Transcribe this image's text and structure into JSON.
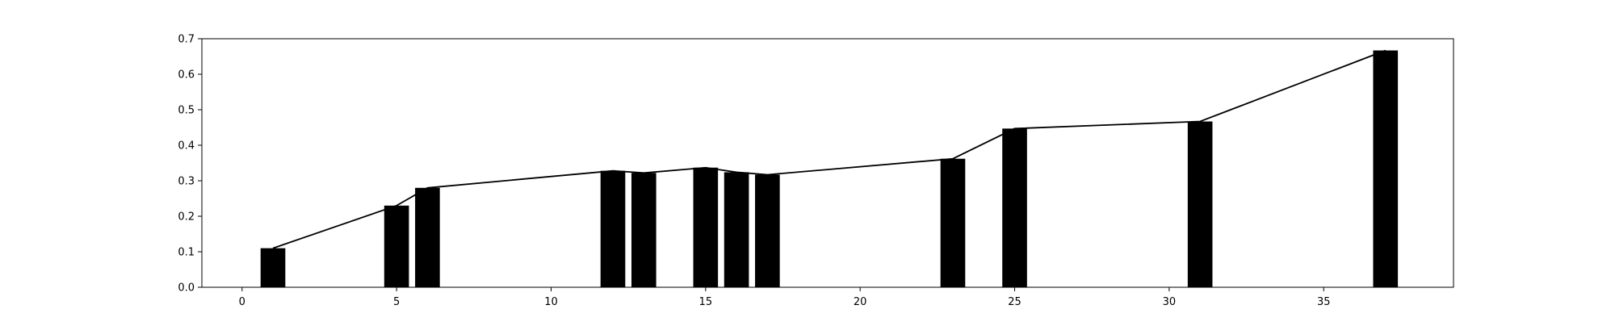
{
  "chart_data": {
    "type": "bar",
    "title": "",
    "xlabel": "",
    "ylabel": "",
    "xlim": [
      -1.3,
      39.2
    ],
    "ylim": [
      0,
      0.7
    ],
    "grid": false,
    "x_ticks": [
      0,
      5,
      10,
      15,
      20,
      25,
      30,
      35
    ],
    "y_ticks": [
      0.0,
      0.1,
      0.2,
      0.3,
      0.4,
      0.5,
      0.6,
      0.7
    ],
    "x_tick_labels": [
      "0",
      "5",
      "10",
      "15",
      "20",
      "25",
      "30",
      "35"
    ],
    "y_tick_labels": [
      "0.0",
      "0.1",
      "0.2",
      "0.3",
      "0.4",
      "0.5",
      "0.6",
      "0.7"
    ],
    "bar_width": 0.8,
    "x": [
      1,
      5,
      6,
      12,
      13,
      15,
      16,
      17,
      23,
      25,
      31,
      37
    ],
    "values": [
      0.11,
      0.23,
      0.28,
      0.328,
      0.322,
      0.337,
      0.324,
      0.317,
      0.362,
      0.447,
      0.467,
      0.667
    ],
    "line": {
      "x": [
        1,
        5,
        6,
        12,
        13,
        15,
        16,
        17,
        23,
        25,
        31,
        37
      ],
      "values": [
        0.11,
        0.23,
        0.28,
        0.328,
        0.322,
        0.337,
        0.324,
        0.317,
        0.362,
        0.447,
        0.467,
        0.667
      ]
    },
    "colors": {
      "bar": "#000000",
      "line": "#000000",
      "axis": "#000000",
      "background": "#ffffff"
    }
  }
}
